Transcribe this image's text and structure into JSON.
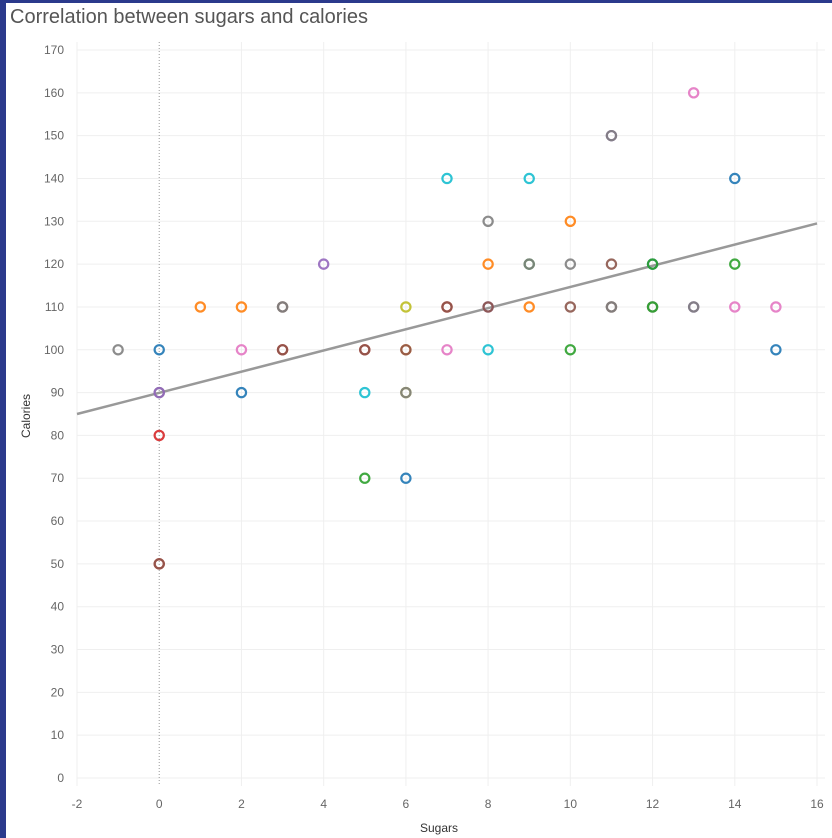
{
  "chart_data": {
    "type": "scatter",
    "title": "Correlation between sugars and calories",
    "xlabel": "Sugars",
    "ylabel": "Calories",
    "xlim": [
      -2,
      16
    ],
    "ylim": [
      0,
      170
    ],
    "xticks": [
      -2,
      0,
      2,
      4,
      6,
      8,
      10,
      12,
      14,
      16
    ],
    "yticks": [
      0,
      10,
      20,
      30,
      40,
      50,
      60,
      70,
      80,
      90,
      100,
      110,
      120,
      130,
      140,
      150,
      160,
      170
    ],
    "grid": true,
    "legend": "none",
    "trend_line": {
      "x": [
        -2,
        16
      ],
      "y": [
        85,
        129.5
      ],
      "color": "#999999"
    },
    "points": [
      {
        "x": -1,
        "y": 100,
        "color": "#7f7f7f"
      },
      {
        "x": 0,
        "y": 100,
        "color": "#1f77b4"
      },
      {
        "x": 0,
        "y": 90,
        "color": "#7f7f7f"
      },
      {
        "x": 0,
        "y": 90,
        "color": "#9467bd"
      },
      {
        "x": 0,
        "y": 80,
        "color": "#d62728"
      },
      {
        "x": 0,
        "y": 50,
        "color": "#d62728"
      },
      {
        "x": 0,
        "y": 50,
        "color": "#8c564b"
      },
      {
        "x": 1,
        "y": 110,
        "color": "#ff7f0e"
      },
      {
        "x": 2,
        "y": 110,
        "color": "#ff7f0e"
      },
      {
        "x": 2,
        "y": 100,
        "color": "#e377c2"
      },
      {
        "x": 2,
        "y": 90,
        "color": "#1f77b4"
      },
      {
        "x": 3,
        "y": 110,
        "color": "#8c564b"
      },
      {
        "x": 3,
        "y": 110,
        "color": "#7f7f7f"
      },
      {
        "x": 3,
        "y": 100,
        "color": "#d62728"
      },
      {
        "x": 3,
        "y": 100,
        "color": "#8c564b"
      },
      {
        "x": 4,
        "y": 120,
        "color": "#9467bd"
      },
      {
        "x": 5,
        "y": 100,
        "color": "#d62728"
      },
      {
        "x": 5,
        "y": 100,
        "color": "#8c564b"
      },
      {
        "x": 5,
        "y": 90,
        "color": "#17becf"
      },
      {
        "x": 5,
        "y": 70,
        "color": "#2ca02c"
      },
      {
        "x": 6,
        "y": 110,
        "color": "#bcbd22"
      },
      {
        "x": 6,
        "y": 100,
        "color": "#ff7f0e"
      },
      {
        "x": 6,
        "y": 100,
        "color": "#8c564b"
      },
      {
        "x": 6,
        "y": 90,
        "color": "#bcbd22"
      },
      {
        "x": 6,
        "y": 90,
        "color": "#7f7f7f"
      },
      {
        "x": 6,
        "y": 70,
        "color": "#1f77b4"
      },
      {
        "x": 7,
        "y": 140,
        "color": "#17becf"
      },
      {
        "x": 7,
        "y": 110,
        "color": "#d62728"
      },
      {
        "x": 7,
        "y": 110,
        "color": "#8c564b"
      },
      {
        "x": 7,
        "y": 100,
        "color": "#e377c2"
      },
      {
        "x": 8,
        "y": 130,
        "color": "#7f7f7f"
      },
      {
        "x": 8,
        "y": 120,
        "color": "#ff7f0e"
      },
      {
        "x": 8,
        "y": 110,
        "color": "#9467bd"
      },
      {
        "x": 8,
        "y": 110,
        "color": "#8c564b"
      },
      {
        "x": 8,
        "y": 100,
        "color": "#17becf"
      },
      {
        "x": 9,
        "y": 140,
        "color": "#17becf"
      },
      {
        "x": 9,
        "y": 120,
        "color": "#2ca02c"
      },
      {
        "x": 9,
        "y": 120,
        "color": "#7f7f7f"
      },
      {
        "x": 9,
        "y": 110,
        "color": "#ff7f0e"
      },
      {
        "x": 10,
        "y": 130,
        "color": "#ff7f0e"
      },
      {
        "x": 10,
        "y": 120,
        "color": "#7f7f7f"
      },
      {
        "x": 10,
        "y": 110,
        "color": "#8c564b"
      },
      {
        "x": 10,
        "y": 100,
        "color": "#2ca02c"
      },
      {
        "x": 11,
        "y": 150,
        "color": "#9467bd"
      },
      {
        "x": 11,
        "y": 150,
        "color": "#7f7f7f"
      },
      {
        "x": 11,
        "y": 120,
        "color": "#8c564b"
      },
      {
        "x": 11,
        "y": 110,
        "color": "#8c564b"
      },
      {
        "x": 11,
        "y": 110,
        "color": "#7f7f7f"
      },
      {
        "x": 12,
        "y": 120,
        "color": "#1f77b4"
      },
      {
        "x": 12,
        "y": 120,
        "color": "#2ca02c"
      },
      {
        "x": 12,
        "y": 110,
        "color": "#7f7f7f"
      },
      {
        "x": 12,
        "y": 110,
        "color": "#2ca02c"
      },
      {
        "x": 13,
        "y": 160,
        "color": "#e377c2"
      },
      {
        "x": 13,
        "y": 110,
        "color": "#9467bd"
      },
      {
        "x": 13,
        "y": 110,
        "color": "#7f7f7f"
      },
      {
        "x": 14,
        "y": 140,
        "color": "#1f77b4"
      },
      {
        "x": 14,
        "y": 120,
        "color": "#2ca02c"
      },
      {
        "x": 14,
        "y": 110,
        "color": "#e377c2"
      },
      {
        "x": 15,
        "y": 110,
        "color": "#e377c2"
      },
      {
        "x": 15,
        "y": 100,
        "color": "#1f77b4"
      }
    ]
  }
}
